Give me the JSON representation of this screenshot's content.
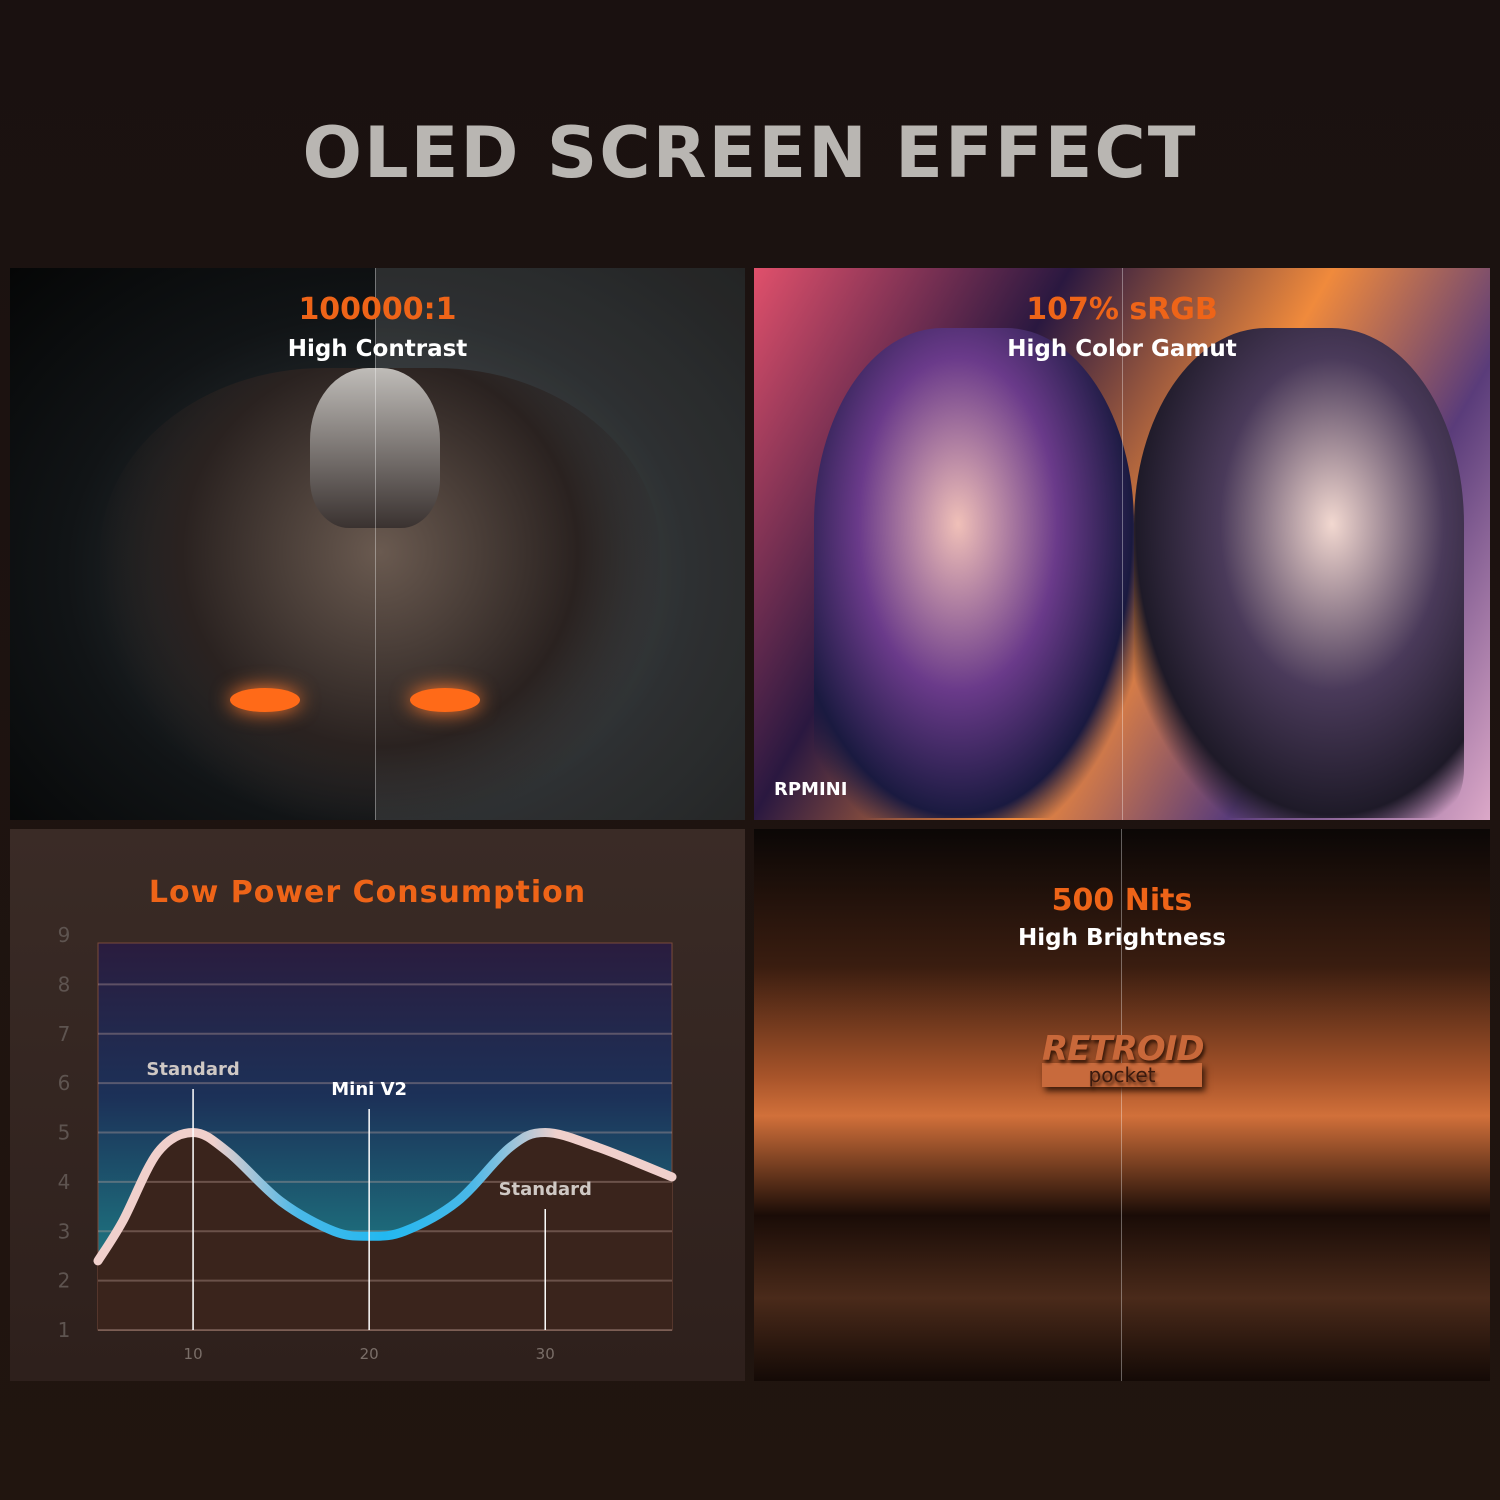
{
  "title": "OLED SCREEN EFFECT",
  "panels": {
    "contrast": {
      "headline": "100000:1",
      "subtitle": "High Contrast"
    },
    "gamut": {
      "headline": "107% sRGB",
      "subtitle": "High Color Gamut",
      "watermark": "RPMINI"
    },
    "power": {
      "headline": "Low Power Consumption"
    },
    "brightness": {
      "headline": "500 Nits",
      "subtitle": "High Brightness",
      "logo": "RETROID pocket"
    }
  },
  "accent_color": "#ee6418",
  "chart_data": {
    "type": "line",
    "title": "Low Power Consumption",
    "xlim": [
      4.6,
      37.2
    ],
    "ylim": [
      1,
      9
    ],
    "x_ticks": [
      "10",
      "20",
      "30"
    ],
    "y_ticks": [
      "1",
      "2",
      "3",
      "4",
      "5",
      "6",
      "7",
      "8",
      "9"
    ],
    "grid": true,
    "x": [
      4.6,
      6,
      8,
      10,
      12,
      15,
      18,
      20,
      22,
      25,
      28,
      30,
      33,
      37.2
    ],
    "y": [
      2.4,
      3.2,
      4.6,
      5,
      4.6,
      3.6,
      3.0,
      2.9,
      3.0,
      3.6,
      4.7,
      5,
      4.7,
      4.1
    ],
    "annotations": [
      {
        "x": 10,
        "y": 5,
        "label": "Standard"
      },
      {
        "x": 20,
        "y": 2.9,
        "label": "Mini V2"
      },
      {
        "x": 30,
        "y": 5,
        "label": "Standard"
      }
    ]
  }
}
